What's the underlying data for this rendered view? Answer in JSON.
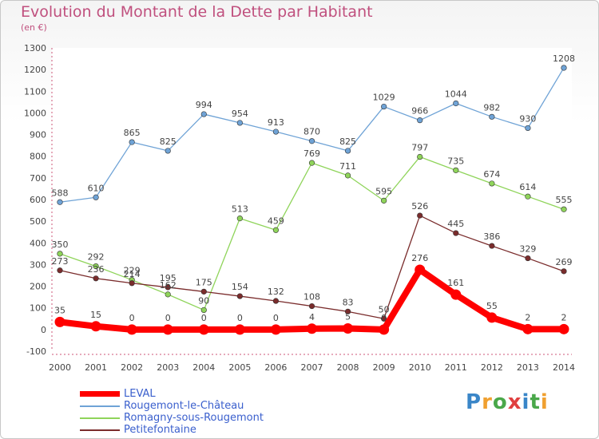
{
  "title": "Evolution du Montant de la Dette par Habitant",
  "subtitle": "(en €)",
  "logo": "Proxiti",
  "chart_data": {
    "type": "line",
    "title": "Evolution du Montant de la Dette par Habitant",
    "ylabel": "(en €)",
    "xlabel": "",
    "ylim": [
      -100,
      1300
    ],
    "y_ticks": [
      -100,
      0,
      100,
      200,
      300,
      400,
      500,
      600,
      700,
      800,
      900,
      1000,
      1100,
      1200,
      1300
    ],
    "categories": [
      "2000",
      "2001",
      "2002",
      "2003",
      "2004",
      "2005",
      "2006",
      "2007",
      "2008",
      "2009",
      "2010",
      "2011",
      "2012",
      "2013",
      "2014"
    ],
    "legend_position": "bottom-left",
    "series": [
      {
        "name": "LEVAL",
        "color": "#ff0000",
        "values": [
          35,
          15,
          0,
          0,
          0,
          0,
          0,
          4,
          5,
          0,
          276,
          161,
          55,
          2,
          2
        ],
        "emphasis": true
      },
      {
        "name": "Rougemont-le-Château",
        "color": "#6fa3d6",
        "values": [
          588,
          610,
          865,
          825,
          994,
          954,
          913,
          870,
          825,
          1029,
          966,
          1044,
          982,
          930,
          1208
        ]
      },
      {
        "name": "Romagny-sous-Rougemont",
        "color": "#8fd45a",
        "values": [
          350,
          292,
          229,
          162,
          90,
          513,
          459,
          769,
          711,
          595,
          797,
          735,
          674,
          614,
          555
        ]
      },
      {
        "name": "Petitefontaine",
        "color": "#7a2c2c",
        "values": [
          273,
          236,
          214,
          195,
          175,
          154,
          132,
          108,
          83,
          50,
          526,
          445,
          386,
          329,
          269
        ]
      }
    ]
  }
}
